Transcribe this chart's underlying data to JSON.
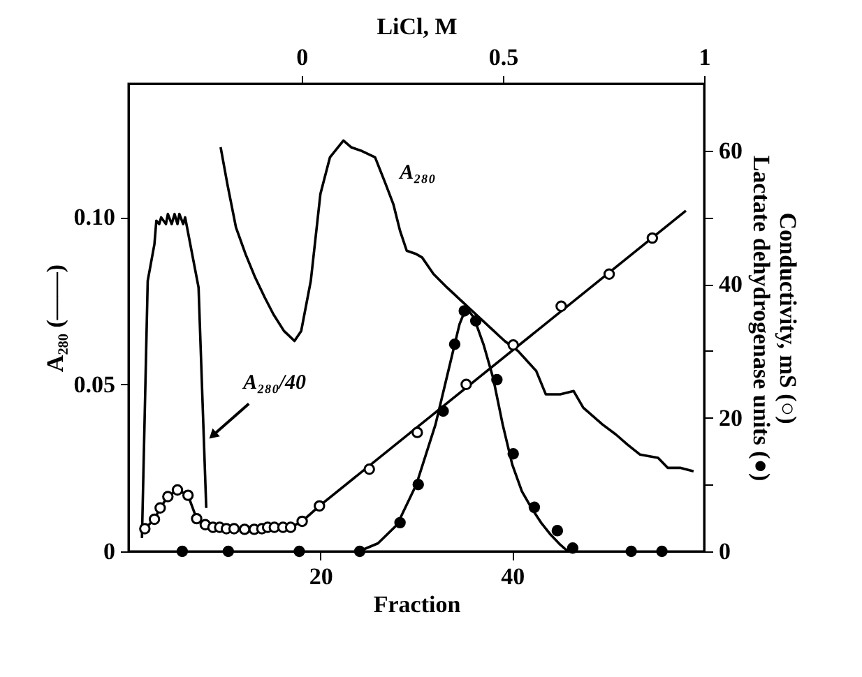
{
  "chart_data": {
    "type": "line",
    "xlabel": "Fraction",
    "ylabel": "A₂₈₀ (——)",
    "y2label": "Conductivity, mS (○)\nLactate dehydrogenase units (●)",
    "x2label": "LiCl, M",
    "xlim": [
      0,
      60
    ],
    "xticks": [
      20,
      40
    ],
    "ylim": [
      0,
      0.14
    ],
    "yticks": [
      0,
      0.05,
      {
        "value": 0.1,
        "label": "0.10"
      }
    ],
    "y2lim": [
      0,
      70
    ],
    "y2ticks": [
      0,
      {
        "value": 10,
        "label": null
      },
      20,
      {
        "value": 30,
        "label": null
      },
      40,
      {
        "value": 50,
        "label": null
      },
      60
    ],
    "x2lim": [
      -0.43,
      1
    ],
    "x2ticks": [
      0,
      0.5,
      1
    ],
    "grid": false,
    "series": [
      {
        "color": "#000000",
        "x": [
          9.6,
          10.3,
          11.2,
          12.2,
          13.2,
          14.2,
          15.1,
          16.2,
          17.3,
          18.0,
          19.0,
          20.0,
          21.0,
          22.4,
          23.2,
          24.2,
          25.7,
          26.8,
          27.6,
          28.3,
          29.0,
          30.0,
          30.6,
          31.8,
          33.2,
          34.7,
          36.2,
          37.7,
          39.2,
          40.6,
          42.5,
          43.5,
          45.0,
          46.4,
          47.4,
          49.4,
          50.8,
          52.0,
          53.3,
          55.2,
          56.2,
          57.5,
          58.9
        ],
        "values": [
          0.121,
          0.11,
          0.097,
          0.089,
          0.082,
          0.076,
          0.071,
          0.066,
          0.063,
          0.066,
          0.081,
          0.107,
          0.118,
          0.123,
          0.121,
          0.12,
          0.118,
          0.11,
          0.104,
          0.096,
          0.09,
          0.089,
          0.088,
          0.083,
          0.079,
          0.075,
          0.071,
          0.067,
          0.063,
          0.06,
          0.054,
          0.047,
          0.047,
          0.048,
          0.043,
          0.038,
          0.035,
          0.032,
          0.029,
          0.028,
          0.025,
          0.025,
          0.024
        ]
      },
      {
        "color": "#000000",
        "x": [
          1.4,
          2.0,
          2.7,
          2.9,
          3.2,
          3.4,
          3.9,
          4.1,
          4.5,
          4.8,
          5.1,
          5.3,
          5.7,
          5.9,
          7.3,
          8.1
        ],
        "values": [
          0.004,
          0.081,
          0.092,
          0.099,
          0.098,
          0.1,
          0.098,
          0.101,
          0.098,
          0.101,
          0.098,
          0.101,
          0.098,
          0.1,
          0.079,
          0.013
        ]
      },
      {
        "color": "#000000",
        "axis": "y2",
        "x": [
          1.7,
          2.7,
          3.3,
          4.1,
          5.1,
          6.2,
          7.1,
          8.0,
          8.8,
          9.5,
          10.2,
          11.0,
          12.1,
          13.1,
          13.9,
          14.5,
          15.2,
          16.1,
          16.9,
          18.1,
          19.9,
          58.1
        ],
        "values": [
          3.4,
          4.8,
          6.5,
          8.2,
          9.2,
          8.4,
          4.9,
          4.0,
          3.6,
          3.6,
          3.4,
          3.4,
          3.3,
          3.3,
          3.4,
          3.6,
          3.6,
          3.6,
          3.6,
          4.5,
          6.8,
          51
        ]
      },
      {
        "type": "scatter",
        "color": "#ffffff",
        "axis": "y2",
        "marker": "circle",
        "x": [
          1.7,
          2.7,
          3.3,
          4.1,
          5.1,
          6.2,
          7.1,
          8.0,
          8.8,
          9.5,
          10.2,
          11.0,
          12.1,
          13.1,
          13.9,
          14.5,
          15.2,
          16.1,
          16.9,
          18.1,
          19.9,
          25.1,
          30.1,
          35.2,
          40.1,
          45.1,
          50.1,
          54.6
        ],
        "values": [
          3.4,
          4.8,
          6.5,
          8.2,
          9.2,
          8.4,
          4.9,
          4.0,
          3.6,
          3.6,
          3.4,
          3.4,
          3.3,
          3.3,
          3.4,
          3.6,
          3.6,
          3.6,
          3.6,
          4.5,
          6.8,
          12.3,
          17.8,
          25.0,
          30.9,
          36.7,
          41.5,
          46.9
        ]
      },
      {
        "color": "#000000",
        "axis": "y2",
        "x": [
          24,
          26,
          28,
          30,
          32,
          33.5,
          34.5,
          35.2,
          36,
          37,
          38,
          39,
          40,
          41,
          42,
          43,
          44,
          45,
          45.8
        ],
        "values": [
          0,
          1.2,
          4,
          10,
          19,
          28,
          34,
          36.5,
          35,
          31,
          26,
          19,
          13,
          9,
          6.5,
          4.3,
          2.5,
          1,
          0
        ]
      },
      {
        "type": "scatter",
        "color": "#000000",
        "axis": "y2",
        "marker": "circle",
        "x": [
          5.6,
          10.4,
          17.8,
          24.1,
          28.3,
          30.2,
          32.8,
          34.0,
          35.0,
          36.2,
          38.4,
          40.1,
          42.3,
          44.7,
          46.3,
          52.4,
          55.6
        ],
        "values": [
          0,
          0,
          0,
          0,
          4.3,
          10,
          21,
          31,
          36,
          34.5,
          25.7,
          14.6,
          6.6,
          3.1,
          0.5,
          0,
          0
        ]
      }
    ],
    "annotations": [
      {
        "text": "A₂₈₀",
        "x": 27.4,
        "y": 0.107
      },
      {
        "text": "A₂₈₀/40",
        "x": 8.9,
        "y": 0.035
      }
    ]
  }
}
